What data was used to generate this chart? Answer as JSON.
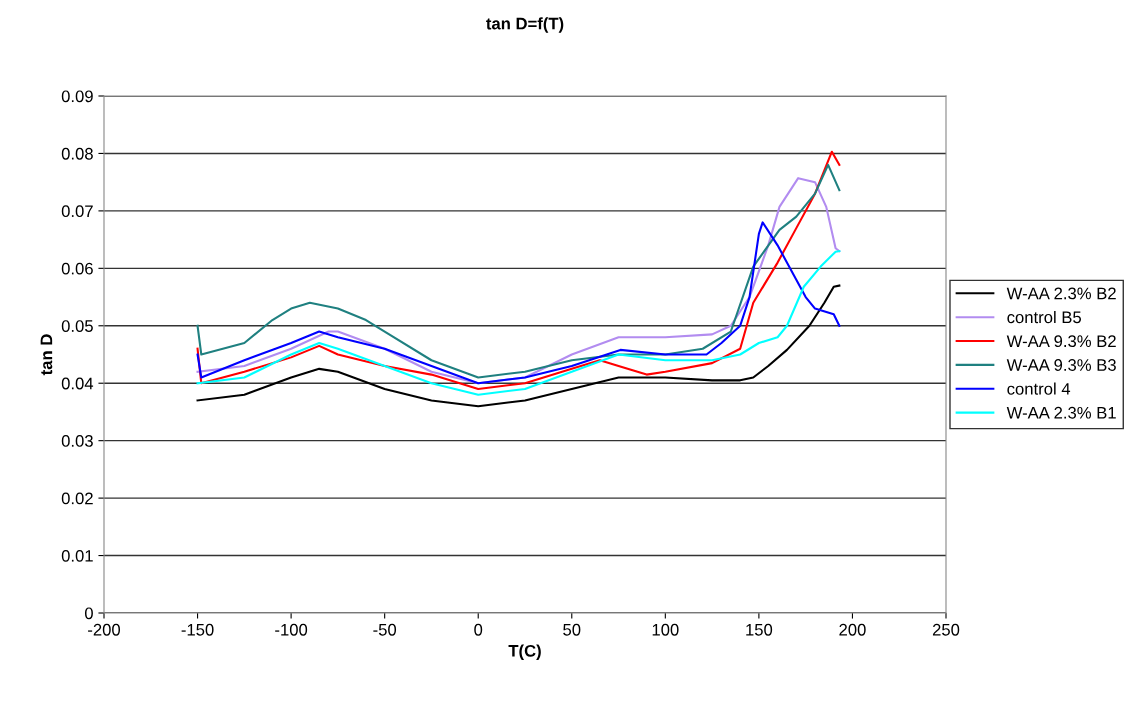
{
  "chart_data": {
    "type": "line",
    "title": "tan D=f(T)",
    "xlabel": "T(C)",
    "ylabel": "tan D",
    "xlim": [
      -200,
      250
    ],
    "xticks": [
      -200,
      -150,
      -100,
      -50,
      0,
      50,
      100,
      150,
      200,
      250
    ],
    "ylim": [
      0,
      0.09
    ],
    "yticks": [
      0,
      0.01,
      0.02,
      0.03,
      0.04,
      0.05,
      0.06,
      0.07,
      0.08,
      0.09
    ],
    "grid": "y",
    "legend": "right",
    "marker": "none",
    "line_style": "solid",
    "series": [
      {
        "name": "W-AA 2.3% B2",
        "color": "#000000",
        "x": [
          -150,
          -125,
          -100,
          -85,
          -75,
          -50,
          -25,
          0,
          25,
          50,
          75,
          100,
          125,
          140,
          147,
          155,
          165,
          177,
          185,
          190,
          193
        ],
        "values": [
          0.037,
          0.038,
          0.041,
          0.0425,
          0.042,
          0.039,
          0.037,
          0.036,
          0.037,
          0.039,
          0.041,
          0.041,
          0.0405,
          0.0405,
          0.041,
          0.043,
          0.0458,
          0.05,
          0.054,
          0.0568,
          0.057
        ]
      },
      {
        "name": "control B5",
        "color": "#b28cf0",
        "x": [
          -150,
          -125,
          -100,
          -80,
          -75,
          -50,
          -25,
          0,
          25,
          50,
          75,
          100,
          125,
          135,
          145,
          155,
          161,
          171,
          180,
          186,
          191,
          193
        ],
        "values": [
          0.042,
          0.043,
          0.046,
          0.049,
          0.049,
          0.046,
          0.042,
          0.04,
          0.041,
          0.045,
          0.048,
          0.048,
          0.0485,
          0.05,
          0.055,
          0.064,
          0.0707,
          0.0757,
          0.075,
          0.0707,
          0.0635,
          0.063
        ]
      },
      {
        "name": "W-AA 9.3% B2",
        "color": "#ff0000",
        "x": [
          -150,
          -148,
          -125,
          -100,
          -85,
          -75,
          -50,
          -25,
          0,
          25,
          50,
          65,
          75,
          90,
          100,
          125,
          140,
          147,
          160,
          170,
          180,
          189,
          193
        ],
        "values": [
          0.046,
          0.04,
          0.042,
          0.0445,
          0.0465,
          0.045,
          0.043,
          0.0415,
          0.039,
          0.04,
          0.0425,
          0.044,
          0.043,
          0.0415,
          0.042,
          0.0435,
          0.046,
          0.054,
          0.061,
          0.067,
          0.073,
          0.0803,
          0.078
        ]
      },
      {
        "name": "W-AA 9.3% B3",
        "color": "#1f8080",
        "x": [
          -150,
          -148,
          -125,
          -110,
          -100,
          -90,
          -75,
          -60,
          -50,
          -25,
          0,
          25,
          50,
          75,
          100,
          120,
          135,
          147,
          161,
          170,
          180,
          187,
          193
        ],
        "values": [
          0.05,
          0.045,
          0.047,
          0.051,
          0.053,
          0.054,
          0.053,
          0.051,
          0.049,
          0.044,
          0.041,
          0.042,
          0.044,
          0.045,
          0.045,
          0.046,
          0.049,
          0.0603,
          0.0667,
          0.069,
          0.073,
          0.078,
          0.0736
        ]
      },
      {
        "name": "control 4",
        "color": "#0000ff",
        "x": [
          -150,
          -148,
          -125,
          -100,
          -85,
          -75,
          -50,
          -25,
          0,
          25,
          50,
          76,
          100,
          122,
          130,
          140,
          145,
          150,
          152,
          160,
          170,
          175,
          180,
          190,
          193
        ],
        "values": [
          0.045,
          0.041,
          0.044,
          0.047,
          0.049,
          0.048,
          0.046,
          0.043,
          0.04,
          0.041,
          0.043,
          0.0458,
          0.045,
          0.045,
          0.047,
          0.05,
          0.055,
          0.066,
          0.068,
          0.064,
          0.058,
          0.055,
          0.053,
          0.052,
          0.05
        ]
      },
      {
        "name": "W-AA 2.3% B1",
        "color": "#00ffff",
        "x": [
          -150,
          -125,
          -100,
          -85,
          -75,
          -50,
          -25,
          0,
          25,
          50,
          75,
          100,
          125,
          140,
          150,
          160,
          165,
          174,
          183,
          191,
          193
        ],
        "values": [
          0.04,
          0.041,
          0.045,
          0.047,
          0.046,
          0.043,
          0.04,
          0.038,
          0.039,
          0.042,
          0.045,
          0.044,
          0.044,
          0.045,
          0.047,
          0.048,
          0.05,
          0.0568,
          0.0603,
          0.0629,
          0.063
        ]
      }
    ]
  }
}
